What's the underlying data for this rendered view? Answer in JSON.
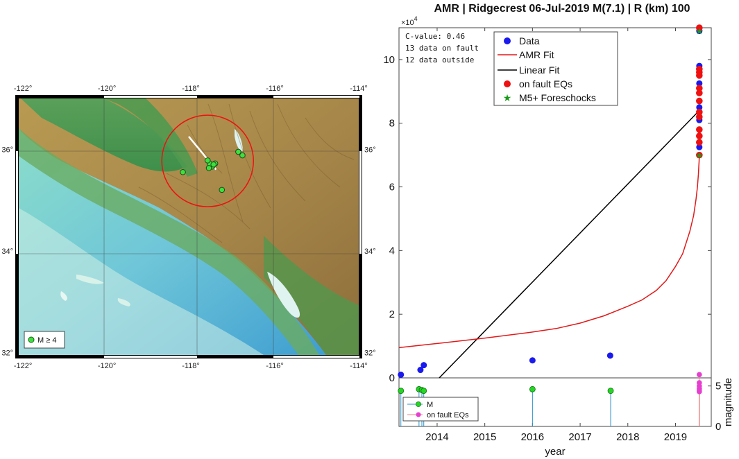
{
  "map": {
    "lon_ticks": [
      "-122°",
      "-120°",
      "-118°",
      "-116°",
      "-114°"
    ],
    "lat_ticks": [
      "36°",
      "34°",
      "32°"
    ],
    "legend_label": "M ≥ 4",
    "events": [
      {
        "lon": -117.42,
        "lat": 35.72
      },
      {
        "lon": -117.49,
        "lat": 35.66
      },
      {
        "lon": -117.55,
        "lat": 35.72
      },
      {
        "lon": -117.6,
        "lat": 35.78
      },
      {
        "lon": -117.57,
        "lat": 35.63
      },
      {
        "lon": -117.46,
        "lat": 35.7
      },
      {
        "lon": -118.19,
        "lat": 35.55
      },
      {
        "lon": -117.26,
        "lat": 35.2
      },
      {
        "lon": -116.87,
        "lat": 35.95
      },
      {
        "lon": -116.77,
        "lat": 35.88
      }
    ],
    "center": {
      "lon": -117.6,
      "lat": 35.77
    },
    "radius_km": 100,
    "fault_line": [
      {
        "lon": -118.05,
        "lat": 36.25
      },
      {
        "lon": -117.4,
        "lat": 35.6
      }
    ]
  },
  "chart_data": {
    "type": "line",
    "title": "AMR | Ridgecrest 06-Jul-2019 M(7.1) | R (km) 100",
    "annotation_lines": [
      "C-value: 0.46",
      "13 data on fault",
      "12 data outside"
    ],
    "y_exponent": "×10",
    "y_exponent_power": "4",
    "xlabel": "year",
    "ylabel_bottom": "magnitude",
    "xlim": [
      2013.2,
      2019.75
    ],
    "ylim": [
      0,
      11
    ],
    "x_tick_values": [
      2014,
      2015,
      2016,
      2017,
      2018,
      2019
    ],
    "x_tick_labels": [
      "2014",
      "2015",
      "2016",
      "2017",
      "2018",
      "2019"
    ],
    "y_tick_values": [
      0,
      2,
      4,
      6,
      8,
      10
    ],
    "y_tick_labels": [
      "0",
      "2",
      "4",
      "6",
      "8",
      "10"
    ],
    "mag_ylim": [
      0,
      6
    ],
    "mag_tick_values": [
      0,
      5
    ],
    "mag_tick_labels": [
      "0",
      "5"
    ],
    "legend": [
      "Data",
      "AMR Fit",
      "Linear Fit",
      "on fault EQs",
      "M5+ Foreschocks"
    ],
    "legend_bottom": [
      "M",
      "on fault EQs"
    ],
    "colors": {
      "data": "#1a1aee",
      "amr": "#e11919",
      "linear": "#000000",
      "onfault": "#ee1111",
      "foreshock": "#1a9a1a",
      "mag": "#22d822",
      "mag_stem": "#2a93c8",
      "onfault_mag": "#e63fd0",
      "onfault_stem": "#f08080"
    },
    "series": [
      {
        "name": "Data",
        "x": [
          2013.24,
          2013.65,
          2013.72,
          2016.0,
          2017.63,
          2019.5,
          2019.5,
          2019.5,
          2019.5,
          2019.5,
          2019.5
        ],
        "y": [
          0.1,
          0.25,
          0.4,
          0.55,
          0.7,
          7.25,
          8.1,
          8.5,
          9.25,
          9.8,
          10.9
        ]
      },
      {
        "name": "on fault EQs",
        "x": [
          2019.5,
          2019.5,
          2019.5,
          2019.5,
          2019.5,
          2019.5,
          2019.5,
          2019.5,
          2019.5,
          2019.5,
          2019.5,
          2019.5,
          2019.5
        ],
        "y": [
          7.0,
          7.4,
          7.6,
          7.8,
          8.2,
          8.35,
          8.7,
          8.95,
          9.1,
          9.5,
          9.6,
          9.7,
          11.0
        ]
      },
      {
        "name": "M5+ Foreschocks",
        "x": [
          2019.5,
          2019.5
        ],
        "y": [
          7.0,
          10.9
        ]
      },
      {
        "name": "Linear Fit",
        "x": [
          2013.2,
          2019.5
        ],
        "y": [
          -1.3,
          8.4
        ]
      },
      {
        "name": "AMR Fit",
        "tf": 2019.505,
        "x": [
          2013.2,
          2014.0,
          2015.0,
          2016.0,
          2016.5,
          2017.0,
          2017.5,
          2018.0,
          2018.3,
          2018.6,
          2018.8,
          2019.0,
          2019.15,
          2019.3,
          2019.38,
          2019.43,
          2019.46,
          2019.48,
          2019.49,
          2019.495,
          2019.5
        ],
        "y": [
          0.95,
          1.08,
          1.25,
          1.44,
          1.55,
          1.72,
          1.95,
          2.25,
          2.45,
          2.75,
          3.05,
          3.5,
          3.9,
          4.6,
          5.1,
          5.6,
          6.0,
          6.4,
          6.65,
          6.8,
          7.0
        ]
      }
    ],
    "magnitudes": [
      {
        "x": 2013.24,
        "m": 4.4
      },
      {
        "x": 2013.62,
        "m": 4.6
      },
      {
        "x": 2013.68,
        "m": 4.5
      },
      {
        "x": 2013.72,
        "m": 4.4
      },
      {
        "x": 2016.0,
        "m": 4.6
      },
      {
        "x": 2017.64,
        "m": 4.4
      }
    ],
    "onfault_magnitudes": [
      {
        "x": 2019.5,
        "m": 6.4
      },
      {
        "x": 2019.5,
        "m": 5.4
      },
      {
        "x": 2019.5,
        "m": 5.0
      },
      {
        "x": 2019.5,
        "m": 4.7
      },
      {
        "x": 2019.5,
        "m": 4.5
      },
      {
        "x": 2019.5,
        "m": 4.3
      }
    ]
  }
}
